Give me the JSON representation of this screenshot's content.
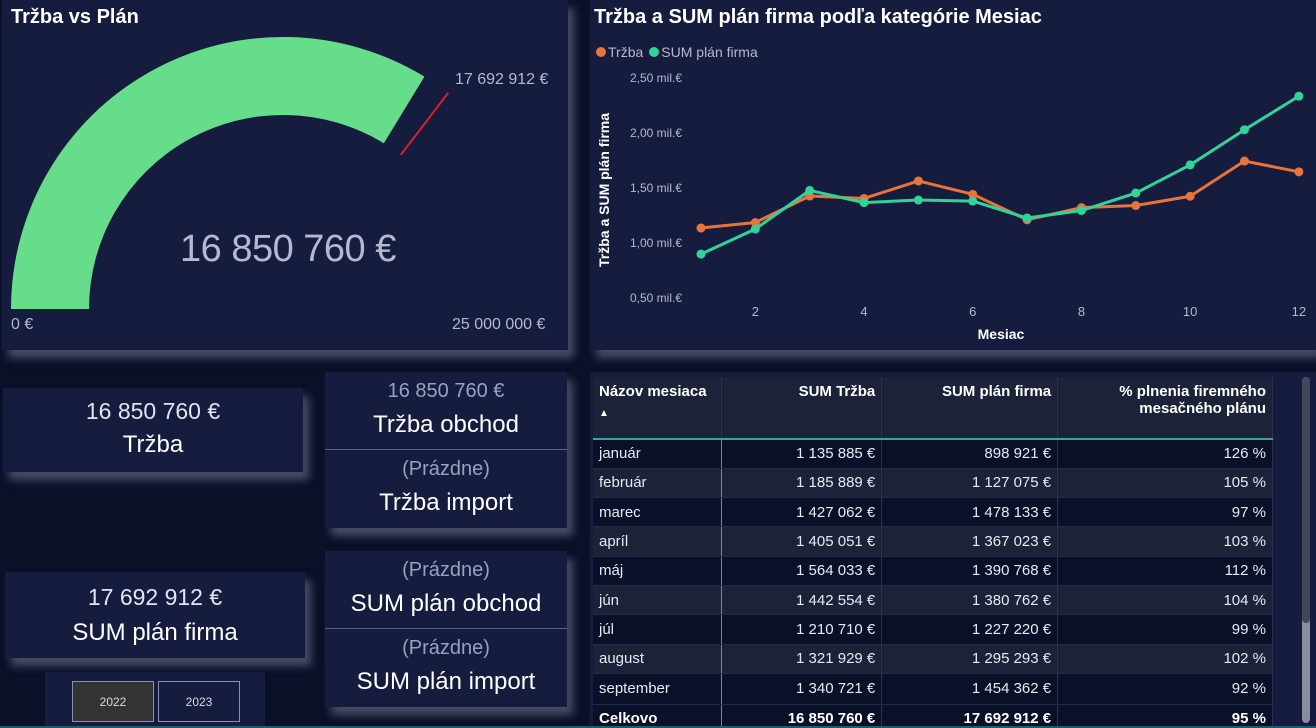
{
  "gauge": {
    "title": "Tržba vs Plán",
    "value": 16850760,
    "value_label": "16 850 760 €",
    "min": 0,
    "min_label": "0 €",
    "max": 25000000,
    "max_label": "25 000 000 €",
    "target": 17692912,
    "target_label": "17 692 912 €",
    "fill_color": "#66dd8b",
    "target_color": "#d6212d"
  },
  "chart_data": {
    "type": "line",
    "title": "Tržba a SUM plán firma podľa kategórie Mesiac",
    "xlabel": "Mesiac",
    "ylabel": "Tržba a SUM plán firma",
    "x": [
      1,
      2,
      3,
      4,
      5,
      6,
      7,
      8,
      9,
      10,
      11,
      12
    ],
    "x_ticks": [
      "2",
      "4",
      "6",
      "8",
      "10",
      "12"
    ],
    "x_tick_values": [
      2,
      4,
      6,
      8,
      10,
      12
    ],
    "y_ticks": [
      "0,50 mil.€",
      "1,00 mil.€",
      "1,50 mil.€",
      "2,00 mil.€",
      "2,50 mil.€"
    ],
    "y_tick_values": [
      0.5,
      1.0,
      1.5,
      2.0,
      2.5
    ],
    "ylim": [
      0.5,
      2.5
    ],
    "xlim": [
      1,
      12
    ],
    "grid": false,
    "legend_position": "top-left",
    "series": [
      {
        "name": "Tržba",
        "color": "#e8733b",
        "values": [
          1.135885,
          1.185889,
          1.427062,
          1.405051,
          1.564033,
          1.442554,
          1.21071,
          1.321929,
          1.340721,
          1.425,
          1.745,
          1.647
        ]
      },
      {
        "name": "SUM plán firma",
        "color": "#2fd49a",
        "values": [
          0.898921,
          1.127075,
          1.478133,
          1.367023,
          1.390768,
          1.380762,
          1.22722,
          1.295293,
          1.454362,
          1.71,
          2.03,
          2.335
        ]
      }
    ]
  },
  "cards": {
    "trzba": {
      "value": "16 850 760 €",
      "label": "Tržba"
    },
    "plan_firma": {
      "value": "17 692 912 €",
      "label": "SUM plán firma"
    },
    "trzba_obchod": {
      "value": "16 850 760 €",
      "label": "Tržba obchod"
    },
    "trzba_import": {
      "value": "(Prázdne)",
      "label": "Tržba import"
    },
    "plan_obchod": {
      "value": "(Prázdne)",
      "label": "SUM plán obchod"
    },
    "plan_import": {
      "value": "(Prázdne)",
      "label": "SUM plán import"
    }
  },
  "year_slicer": {
    "options": [
      {
        "label": "2022",
        "selected": true
      },
      {
        "label": "2023",
        "selected": false
      }
    ]
  },
  "table": {
    "columns": [
      "Názov mesiaca",
      "SUM Tržba",
      "SUM plán firma",
      "% plnenia firemného mesačného plánu"
    ],
    "sort_indicator": "▲",
    "rows": [
      [
        "január",
        "1 135 885 €",
        "898 921 €",
        "126 %"
      ],
      [
        "február",
        "1 185 889 €",
        "1 127 075 €",
        "105 %"
      ],
      [
        "marec",
        "1 427 062 €",
        "1 478 133 €",
        "97 %"
      ],
      [
        "apríl",
        "1 405 051 €",
        "1 367 023 €",
        "103 %"
      ],
      [
        "máj",
        "1 564 033 €",
        "1 390 768 €",
        "112 %"
      ],
      [
        "jún",
        "1 442 554 €",
        "1 380 762 €",
        "104 %"
      ],
      [
        "júl",
        "1 210 710 €",
        "1 227 220 €",
        "99 %"
      ],
      [
        "august",
        "1 321 929 €",
        "1 295 293 €",
        "102 %"
      ],
      [
        "september",
        "1 340 721 €",
        "1 454 362 €",
        "92 %"
      ]
    ],
    "total": [
      "Celkovo",
      "16 850 760 €",
      "17 692 912 €",
      "95 %"
    ]
  }
}
